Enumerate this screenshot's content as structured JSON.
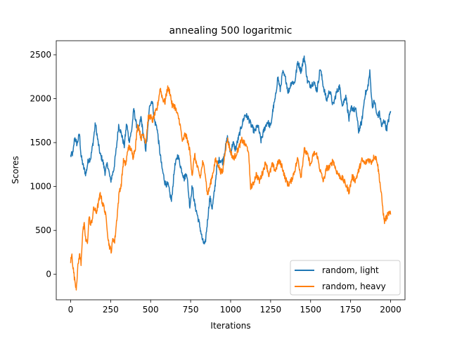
{
  "chart_data": {
    "type": "line",
    "title": "annealing 500 logaritmic",
    "xlabel": "Iterations",
    "ylabel": "Scores",
    "xlim": [
      -90,
      2090
    ],
    "ylim": [
      -290,
      2660
    ],
    "xticks": [
      0,
      250,
      500,
      750,
      1000,
      1250,
      1500,
      1750,
      2000
    ],
    "yticks": [
      0,
      500,
      1000,
      1500,
      2000,
      2500
    ],
    "grid": false,
    "legend_position": "lower right",
    "series": [
      {
        "name": "random, light",
        "color": "#1f77b4",
        "anchors": [
          [
            0,
            1350
          ],
          [
            15,
            1380
          ],
          [
            25,
            1560
          ],
          [
            40,
            1480
          ],
          [
            55,
            1600
          ],
          [
            65,
            1350
          ],
          [
            80,
            1220
          ],
          [
            95,
            1140
          ],
          [
            110,
            1300
          ],
          [
            125,
            1320
          ],
          [
            140,
            1500
          ],
          [
            155,
            1720
          ],
          [
            170,
            1520
          ],
          [
            185,
            1360
          ],
          [
            200,
            1300
          ],
          [
            215,
            1160
          ],
          [
            230,
            1260
          ],
          [
            250,
            1060
          ],
          [
            270,
            1200
          ],
          [
            285,
            1420
          ],
          [
            300,
            1700
          ],
          [
            320,
            1580
          ],
          [
            335,
            1460
          ],
          [
            350,
            1720
          ],
          [
            365,
            1520
          ],
          [
            380,
            1620
          ],
          [
            395,
            1880
          ],
          [
            410,
            1710
          ],
          [
            425,
            1640
          ],
          [
            440,
            1790
          ],
          [
            455,
            1570
          ],
          [
            470,
            1420
          ],
          [
            480,
            1600
          ],
          [
            495,
            1940
          ],
          [
            510,
            1980
          ],
          [
            525,
            1740
          ],
          [
            540,
            1670
          ],
          [
            555,
            1430
          ],
          [
            570,
            1220
          ],
          [
            590,
            1040
          ],
          [
            610,
            1010
          ],
          [
            630,
            830
          ],
          [
            650,
            1220
          ],
          [
            670,
            1360
          ],
          [
            690,
            1210
          ],
          [
            710,
            1090
          ],
          [
            725,
            1160
          ],
          [
            745,
            770
          ],
          [
            760,
            1010
          ],
          [
            775,
            800
          ],
          [
            790,
            690
          ],
          [
            805,
            570
          ],
          [
            825,
            380
          ],
          [
            840,
            330
          ],
          [
            855,
            600
          ],
          [
            870,
            880
          ],
          [
            885,
            750
          ],
          [
            900,
            960
          ],
          [
            915,
            1240
          ],
          [
            930,
            1310
          ],
          [
            950,
            1280
          ],
          [
            965,
            1420
          ],
          [
            980,
            1560
          ],
          [
            1000,
            1380
          ],
          [
            1015,
            1500
          ],
          [
            1030,
            1420
          ],
          [
            1050,
            1560
          ],
          [
            1070,
            1700
          ],
          [
            1090,
            1820
          ],
          [
            1110,
            1780
          ],
          [
            1130,
            1690
          ],
          [
            1150,
            1620
          ],
          [
            1170,
            1700
          ],
          [
            1190,
            1520
          ],
          [
            1210,
            1650
          ],
          [
            1230,
            1740
          ],
          [
            1250,
            1680
          ],
          [
            1265,
            1880
          ],
          [
            1280,
            2010
          ],
          [
            1295,
            2250
          ],
          [
            1310,
            2100
          ],
          [
            1325,
            2300
          ],
          [
            1345,
            2220
          ],
          [
            1360,
            2070
          ],
          [
            1380,
            2190
          ],
          [
            1400,
            2180
          ],
          [
            1420,
            2420
          ],
          [
            1440,
            2310
          ],
          [
            1460,
            2480
          ],
          [
            1480,
            2200
          ],
          [
            1500,
            2150
          ],
          [
            1520,
            2190
          ],
          [
            1540,
            2090
          ],
          [
            1560,
            2350
          ],
          [
            1580,
            2140
          ],
          [
            1600,
            1980
          ],
          [
            1620,
            2100
          ],
          [
            1640,
            1920
          ],
          [
            1660,
            2060
          ],
          [
            1680,
            2140
          ],
          [
            1700,
            1920
          ],
          [
            1720,
            2040
          ],
          [
            1740,
            1760
          ],
          [
            1755,
            1900
          ],
          [
            1770,
            1880
          ],
          [
            1785,
            1860
          ],
          [
            1800,
            1630
          ],
          [
            1820,
            1740
          ],
          [
            1840,
            2050
          ],
          [
            1855,
            2100
          ],
          [
            1870,
            2300
          ],
          [
            1885,
            1920
          ],
          [
            1900,
            1970
          ],
          [
            1915,
            1800
          ],
          [
            1930,
            1830
          ],
          [
            1945,
            1680
          ],
          [
            1960,
            1760
          ],
          [
            1975,
            1650
          ],
          [
            1990,
            1780
          ],
          [
            2000,
            1860
          ]
        ]
      },
      {
        "name": "random, heavy",
        "color": "#ff7f0e",
        "anchors": [
          [
            0,
            150
          ],
          [
            8,
            220
          ],
          [
            15,
            80
          ],
          [
            25,
            -60
          ],
          [
            35,
            -150
          ],
          [
            45,
            80
          ],
          [
            55,
            230
          ],
          [
            65,
            130
          ],
          [
            75,
            480
          ],
          [
            85,
            560
          ],
          [
            95,
            380
          ],
          [
            105,
            360
          ],
          [
            115,
            660
          ],
          [
            125,
            560
          ],
          [
            135,
            630
          ],
          [
            145,
            760
          ],
          [
            160,
            700
          ],
          [
            175,
            820
          ],
          [
            185,
            920
          ],
          [
            200,
            800
          ],
          [
            210,
            760
          ],
          [
            225,
            600
          ],
          [
            235,
            390
          ],
          [
            245,
            300
          ],
          [
            255,
            270
          ],
          [
            265,
            420
          ],
          [
            275,
            370
          ],
          [
            285,
            560
          ],
          [
            295,
            760
          ],
          [
            305,
            960
          ],
          [
            315,
            1000
          ],
          [
            330,
            1290
          ],
          [
            345,
            1250
          ],
          [
            360,
            1450
          ],
          [
            375,
            1430
          ],
          [
            390,
            1340
          ],
          [
            405,
            1450
          ],
          [
            420,
            1720
          ],
          [
            440,
            1550
          ],
          [
            455,
            1600
          ],
          [
            470,
            1500
          ],
          [
            485,
            1780
          ],
          [
            500,
            1800
          ],
          [
            510,
            1740
          ],
          [
            525,
            1820
          ],
          [
            540,
            1880
          ],
          [
            560,
            2120
          ],
          [
            575,
            2000
          ],
          [
            590,
            1960
          ],
          [
            605,
            2120
          ],
          [
            620,
            2080
          ],
          [
            635,
            1920
          ],
          [
            650,
            1920
          ],
          [
            665,
            1830
          ],
          [
            680,
            1750
          ],
          [
            700,
            1500
          ],
          [
            715,
            1600
          ],
          [
            730,
            1530
          ],
          [
            745,
            1400
          ],
          [
            760,
            1130
          ],
          [
            775,
            1360
          ],
          [
            790,
            1230
          ],
          [
            810,
            1100
          ],
          [
            825,
            1270
          ],
          [
            840,
            1180
          ],
          [
            855,
            900
          ],
          [
            870,
            1000
          ],
          [
            890,
            1160
          ],
          [
            905,
            1300
          ],
          [
            920,
            1260
          ],
          [
            935,
            1180
          ],
          [
            950,
            1160
          ],
          [
            965,
            1400
          ],
          [
            980,
            1540
          ],
          [
            1000,
            1400
          ],
          [
            1015,
            1320
          ],
          [
            1030,
            1350
          ],
          [
            1050,
            1440
          ],
          [
            1070,
            1530
          ],
          [
            1090,
            1480
          ],
          [
            1110,
            1420
          ],
          [
            1125,
            1000
          ],
          [
            1140,
            1020
          ],
          [
            1160,
            1140
          ],
          [
            1180,
            1060
          ],
          [
            1200,
            1160
          ],
          [
            1220,
            1280
          ],
          [
            1240,
            1120
          ],
          [
            1260,
            1250
          ],
          [
            1280,
            1180
          ],
          [
            1300,
            1290
          ],
          [
            1320,
            1240
          ],
          [
            1340,
            1100
          ],
          [
            1360,
            1020
          ],
          [
            1380,
            1070
          ],
          [
            1400,
            1180
          ],
          [
            1420,
            1320
          ],
          [
            1440,
            1110
          ],
          [
            1460,
            1420
          ],
          [
            1480,
            1360
          ],
          [
            1500,
            1240
          ],
          [
            1520,
            1380
          ],
          [
            1540,
            1360
          ],
          [
            1560,
            1180
          ],
          [
            1580,
            1060
          ],
          [
            1600,
            1210
          ],
          [
            1620,
            1220
          ],
          [
            1640,
            1300
          ],
          [
            1660,
            1180
          ],
          [
            1680,
            1120
          ],
          [
            1700,
            1090
          ],
          [
            1720,
            1020
          ],
          [
            1740,
            940
          ],
          [
            1760,
            1110
          ],
          [
            1780,
            1070
          ],
          [
            1800,
            1180
          ],
          [
            1820,
            1300
          ],
          [
            1840,
            1260
          ],
          [
            1860,
            1310
          ],
          [
            1880,
            1280
          ],
          [
            1900,
            1350
          ],
          [
            1915,
            1300
          ],
          [
            1930,
            1100
          ],
          [
            1945,
            860
          ],
          [
            1960,
            600
          ],
          [
            1975,
            650
          ],
          [
            1990,
            700
          ],
          [
            2000,
            680
          ]
        ]
      }
    ]
  }
}
